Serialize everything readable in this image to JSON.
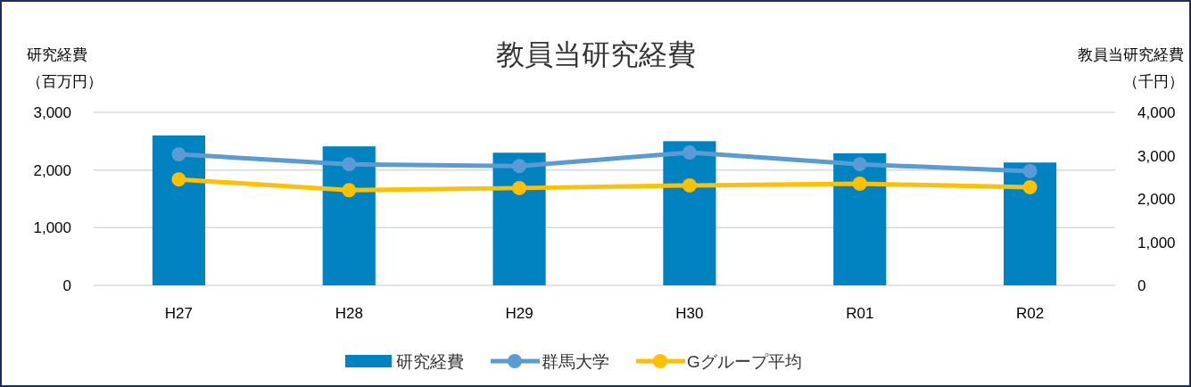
{
  "chart_data": {
    "type": "bar",
    "title": "教員当研究経費",
    "ylabel": "研究経費（百万円）",
    "y2label": "教員当研究経費（千円）",
    "categories": [
      "H27",
      "H28",
      "H29",
      "H30",
      "R01",
      "R02"
    ],
    "series": [
      {
        "name": "研究経費",
        "color": "#0083c0",
        "values": [
          2600,
          2410,
          2300,
          2500,
          2290,
          2130
        ]
      },
      {
        "name": "群馬大学",
        "type": "line",
        "axis": "y2",
        "color": "#5b9bd5",
        "marker": "circle",
        "values": [
          3030,
          2800,
          2760,
          3070,
          2800,
          2640
        ]
      },
      {
        "name": "Gグループ平均",
        "type": "line",
        "axis": "y2",
        "color": "#ffc000",
        "marker": "circle",
        "values": [
          2450,
          2200,
          2250,
          2310,
          2350,
          2270
        ]
      }
    ],
    "ylim": [
      0,
      3000
    ],
    "yticks": [
      0,
      {
        "value": 1000,
        "label": "1,000"
      },
      {
        "value": 2000,
        "label": "2,000"
      },
      {
        "value": 3000,
        "label": "3,000"
      }
    ],
    "y2lim": [
      0,
      4000
    ],
    "y2ticks": [
      0,
      {
        "value": 1000,
        "label": "1,000"
      },
      {
        "value": 2000,
        "label": "2,000"
      },
      {
        "value": 3000,
        "label": "3,000"
      },
      {
        "value": 4000,
        "label": "4,000"
      }
    ],
    "grid": "y",
    "legend": "bottom"
  }
}
